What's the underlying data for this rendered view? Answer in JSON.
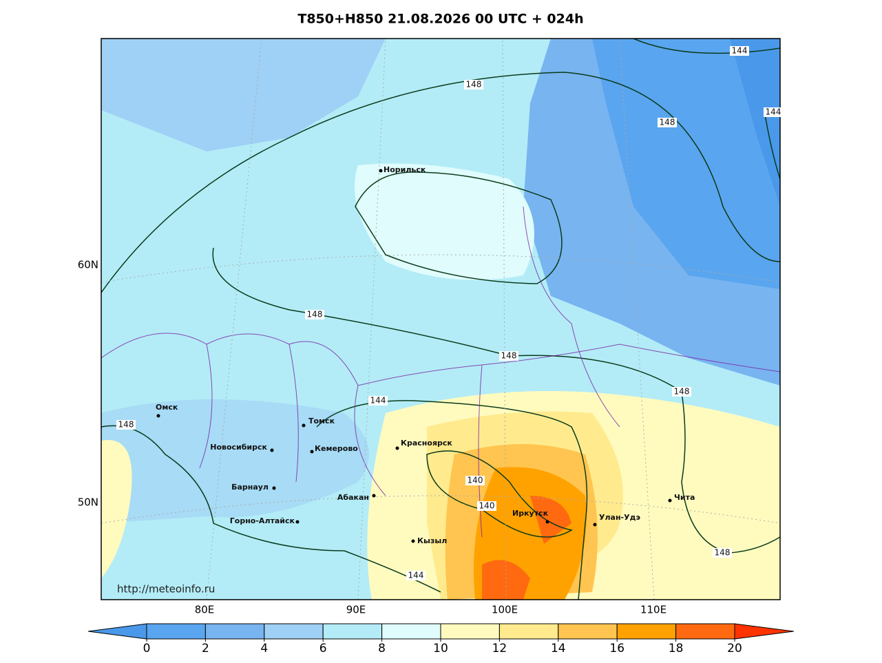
{
  "title": "T850+H850 21.08.2026 00 UTC + 024h",
  "lat_labels": [
    "60N",
    "50N"
  ],
  "lon_labels": [
    "80E",
    "90E",
    "100E",
    "110E"
  ],
  "cities": [
    "Норильск",
    "Омск",
    "Томск",
    "Новосибирск",
    "Кемерово",
    "Красноярск",
    "Барнаул",
    "Абакан",
    "Горно-Алтайск",
    "Кызыл",
    "Иркутск",
    "Улан-Удэ",
    "Чита"
  ],
  "contour_labels": [
    144,
    144,
    148,
    148,
    148,
    148,
    148,
    148,
    144,
    140,
    140,
    148,
    144
  ],
  "source": "http://meteoinfo.ru",
  "colorbar": {
    "ticks": [
      0,
      2,
      4,
      6,
      8,
      10,
      12,
      14,
      16,
      18,
      20
    ],
    "colors": [
      "#4a98ea",
      "#5aa5ef",
      "#78b4f0",
      "#9fd0f5",
      "#b3ecf7",
      "#e0fcfc",
      "#fffbbf",
      "#ffeb8e",
      "#ffc550",
      "#ffa200",
      "#ff6a10",
      "#ff3300"
    ]
  }
}
